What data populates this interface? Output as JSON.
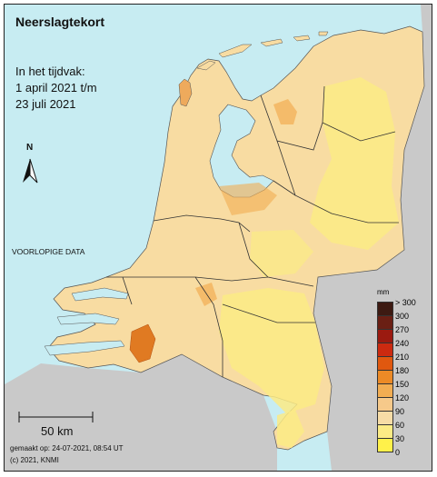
{
  "title": "Neerslagtekort",
  "period": {
    "label": "In het tijdvak:",
    "line1": "1 april 2021 t/m",
    "line2": "23 juli 2021"
  },
  "north_label": "N",
  "preliminary_note": "VOORLOPIGE DATA",
  "scale_bar": {
    "label": "50 km"
  },
  "footer": {
    "made_on": "gemaakt op: 24-07-2021, 08:54 UT",
    "copyright": "(c) 2021, KNMI"
  },
  "legend": {
    "unit": "mm",
    "ticks": [
      "> 300",
      "300",
      "270",
      "240",
      "210",
      "180",
      "150",
      "120",
      "90",
      "60",
      "30",
      "0"
    ],
    "colors": [
      "#3d1a12",
      "#6a1f14",
      "#9b1a10",
      "#cc2a10",
      "#e0580f",
      "#ec8a26",
      "#f2ad52",
      "#f6c98a",
      "#f7dca6",
      "#fbeb85",
      "#fff14a"
    ]
  },
  "colors": {
    "sea": "#c7ecf2",
    "foreign_land": "#c9c9c9",
    "base_land": "#f8dca2",
    "hotspot": "#e07a22"
  }
}
